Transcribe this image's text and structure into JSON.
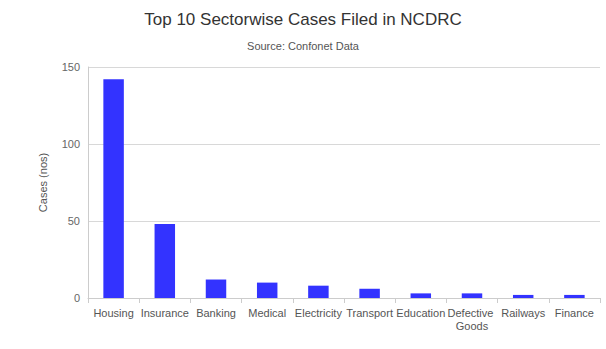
{
  "chart_data": {
    "type": "bar",
    "title": "Top 10 Sectorwise Cases Filed in NCDRC",
    "subtitle": "Source: Confonet Data",
    "y_label": "Cases (nos)",
    "categories": [
      "Housing",
      "Insurance",
      "Banking",
      "Medical",
      "Electricity",
      "Transport",
      "Education",
      "Defective Goods",
      "Railways",
      "Finance"
    ],
    "values": [
      142,
      48,
      12,
      10,
      8,
      6,
      3,
      3,
      2,
      2
    ],
    "color": "#3333ff",
    "ylim": [
      0,
      150
    ],
    "yticks": [
      0,
      50,
      100,
      150
    ],
    "grid": true
  }
}
